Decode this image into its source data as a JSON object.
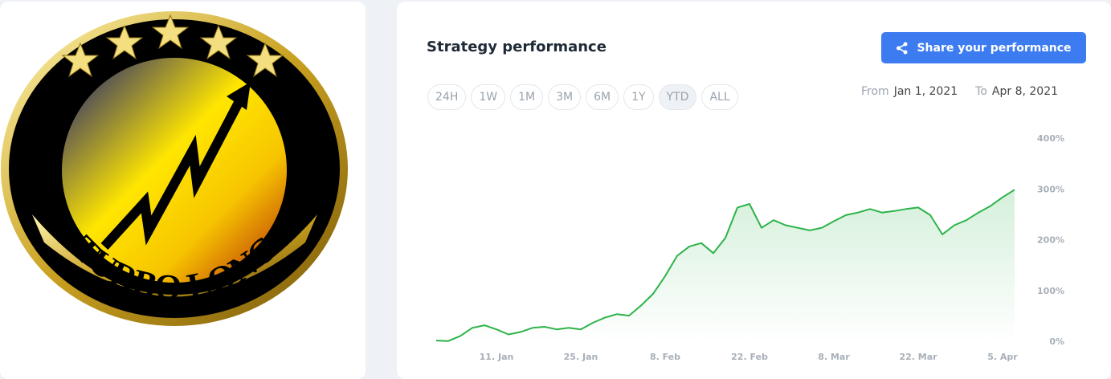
{
  "logo": {
    "text": "TURBO LONG"
  },
  "header": {
    "title": "Strategy performance",
    "share_button": "Share your performance"
  },
  "ranges": {
    "options": [
      "24H",
      "1W",
      "1M",
      "3M",
      "6M",
      "1Y",
      "YTD",
      "ALL"
    ],
    "selected": "YTD"
  },
  "period": {
    "from_label": "From",
    "from": "Jan 1, 2021",
    "to_label": "To",
    "to": "Apr 8, 2021"
  },
  "chart_data": {
    "type": "line",
    "x": [
      "1. Jan",
      "3. Jan",
      "5. Jan",
      "7. Jan",
      "9. Jan",
      "11. Jan",
      "13. Jan",
      "15. Jan",
      "17. Jan",
      "19. Jan",
      "21. Jan",
      "23. Jan",
      "25. Jan",
      "27. Jan",
      "29. Jan",
      "31. Jan",
      "2. Feb",
      "4. Feb",
      "6. Feb",
      "8. Feb",
      "10. Feb",
      "12. Feb",
      "14. Feb",
      "16. Feb",
      "18. Feb",
      "20. Feb",
      "22. Feb",
      "24. Feb",
      "26. Feb",
      "28. Feb",
      "2. Mar",
      "4. Mar",
      "6. Mar",
      "8. Mar",
      "10. Mar",
      "12. Mar",
      "14. Mar",
      "16. Mar",
      "18. Mar",
      "20. Mar",
      "22. Mar",
      "24. Mar",
      "26. Mar",
      "28. Mar",
      "30. Mar",
      "1. Apr",
      "3. Apr",
      "5. Apr",
      "7. Apr"
    ],
    "series": [
      {
        "name": "Strategy",
        "color": "#2db34a",
        "values": [
          3,
          2,
          12,
          28,
          33,
          25,
          15,
          20,
          28,
          30,
          25,
          28,
          25,
          38,
          48,
          55,
          52,
          72,
          95,
          130,
          170,
          188,
          195,
          175,
          205,
          265,
          272,
          225,
          240,
          230,
          225,
          220,
          225,
          238,
          250,
          255,
          262,
          255,
          258,
          262,
          265,
          250,
          212,
          230,
          240,
          255,
          268,
          285,
          300
        ]
      }
    ],
    "xticks": [
      "11. Jan",
      "25. Jan",
      "8. Feb",
      "22. Feb",
      "8. Mar",
      "22. Mar",
      "5. Apr"
    ],
    "ylim": [
      0,
      400
    ],
    "yticks": [
      {
        "value": 0,
        "label": "0%"
      },
      {
        "value": 100,
        "label": "100%"
      },
      {
        "value": 200,
        "label": "200%"
      },
      {
        "value": 300,
        "label": "300%"
      },
      {
        "value": 400,
        "label": "400%"
      }
    ],
    "grid": false
  }
}
